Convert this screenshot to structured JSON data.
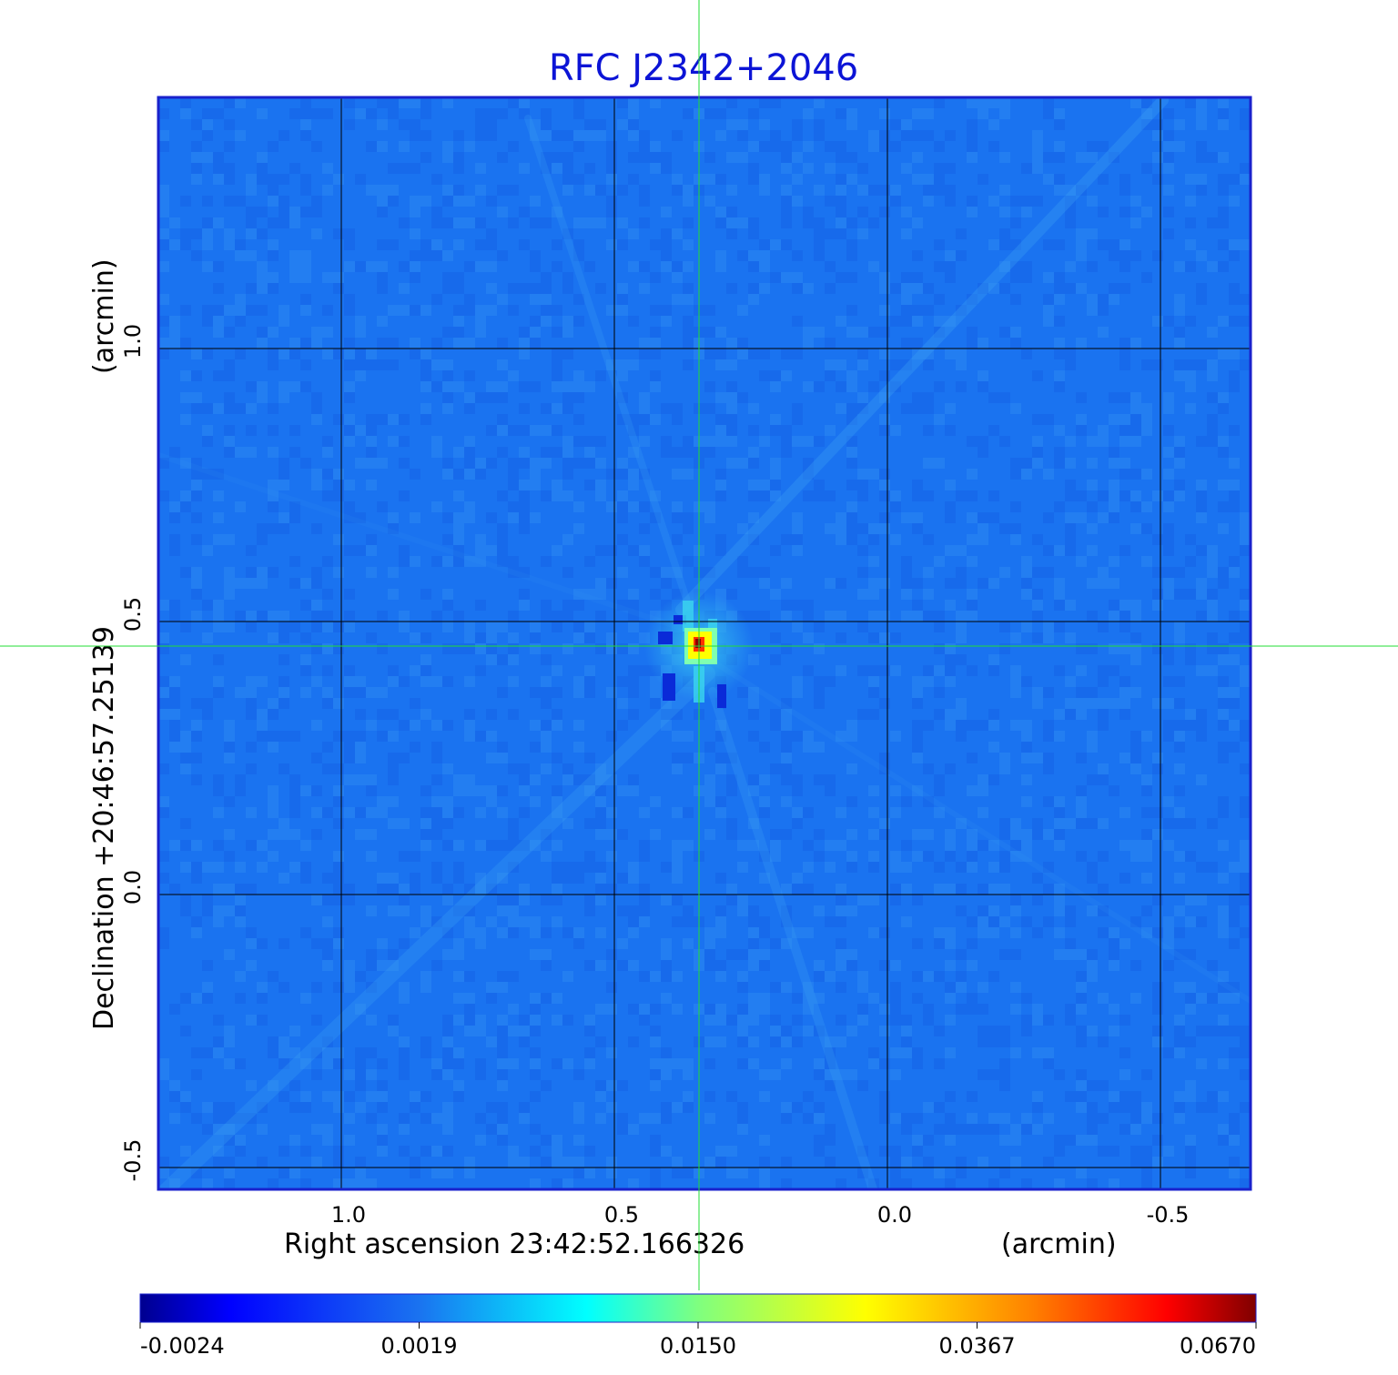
{
  "chart_data": {
    "type": "heatmap",
    "title": "RFC J2342+2046",
    "xlabel": "Right ascension  23:42:52.166326",
    "x_unit": "(arcmin)",
    "ylabel": "Declination  +20:46:57.25139",
    "y_unit": "(arcmin)",
    "x_ticks": [
      1.0,
      0.5,
      0.0,
      -0.5
    ],
    "x_tick_labels": [
      "1.0",
      "0.5",
      "0.0",
      "-0.5"
    ],
    "y_ticks": [
      1.0,
      0.5,
      0.0,
      -0.5
    ],
    "y_tick_labels": [
      "1.0",
      "0.5",
      "0.0",
      "-0.5"
    ],
    "xlim": [
      1.335,
      -0.665
    ],
    "ylim": [
      -0.54,
      1.46
    ],
    "grid": true,
    "crosshair": {
      "x": 0.345,
      "y": 0.455
    },
    "peak": {
      "x": 0.345,
      "y": 0.455,
      "value": 0.067
    },
    "colorbar": {
      "tick_labels": [
        "-0.0024",
        "0.0019",
        "0.0150",
        "0.0367",
        "0.0670"
      ],
      "colors": [
        "#00008f",
        "#0000ff",
        "#00ffff",
        "#ffff00",
        "#ff0000",
        "#800000"
      ]
    },
    "colors": {
      "title": "#0c14d6",
      "frame": "#1a22cc",
      "background_field": "#1a73f0",
      "grid": "#000000",
      "crosshair": "#22dd33"
    }
  }
}
